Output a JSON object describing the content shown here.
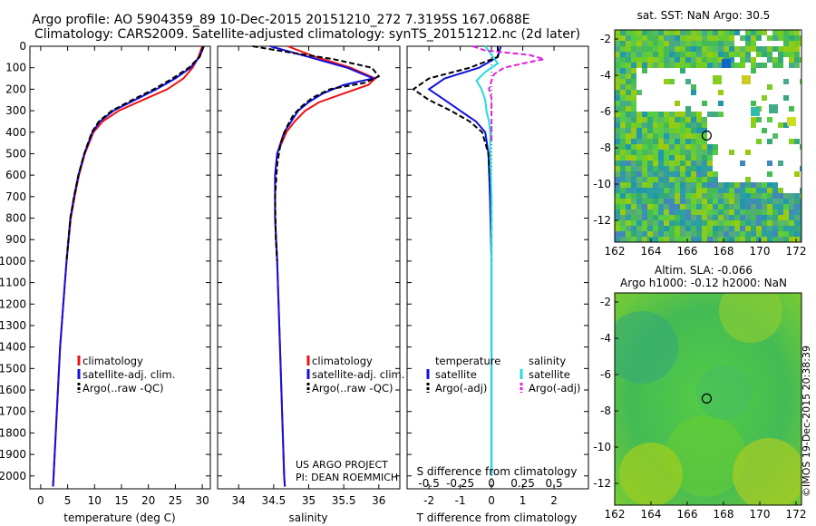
{
  "header": {
    "title_line1": "Argo profile: AO 5904359_89 10-Dec-2015 20151210_272 7.3195S 167.0688E",
    "title_line2": "Climatology: CARS2009. Satellite-adjusted climatology: synTS_20151212.nc (2d later)"
  },
  "colors": {
    "climatology": "#ee1111",
    "satellite": "#1111dd",
    "argo": "#000000",
    "sal_satellite": "#22dddd",
    "sal_argo": "#dd22dd",
    "ocean_green": "#55cc44",
    "land_white": "#ffffff"
  },
  "legend": {
    "climatology": "climatology",
    "satellite_adj": "satellite-adj. clim.",
    "argo_raw": "Argo(..raw -QC)",
    "temperature_head": "temperature",
    "salinity_head": "salinity",
    "satellite": "satellite",
    "argo_adj": "Argo(-adj)"
  },
  "credits": {
    "line1": "US ARGO PROJECT",
    "line2": "PI: DEAN ROEMMICH",
    "imos": "©IMOS 19-Dec-2015 20:38:39"
  },
  "maps": {
    "sst_title": "sat. SST: NaN Argo: 30.5",
    "sla_title1": "Altim. SLA: -0.066",
    "sla_title2": "Argo h1000: -0.12 h2000: NaN",
    "lon_ticks": [
      "162",
      "164",
      "166",
      "168",
      "170",
      "172"
    ],
    "lat_ticks": [
      "-2",
      "-4",
      "-6",
      "-8",
      "-10",
      "-12"
    ],
    "lon_range": [
      162,
      172.3
    ],
    "lat_range": [
      -13.2,
      -1.5
    ],
    "argo_position": {
      "lon": 167.07,
      "lat": -7.32
    }
  },
  "chart_data": [
    {
      "type": "line",
      "name": "temperature-profile",
      "xlabel": "temperature (deg C)",
      "ylabel": "",
      "xlim": [
        -2,
        31.5
      ],
      "ylim": [
        2060,
        0
      ],
      "x_ticks": [
        0,
        5,
        10,
        15,
        20,
        25,
        30
      ],
      "y_ticks": [
        0,
        100,
        200,
        300,
        400,
        500,
        600,
        700,
        800,
        900,
        1000,
        1100,
        1200,
        1300,
        1400,
        1500,
        1600,
        1700,
        1800,
        1900,
        2000
      ],
      "series": [
        {
          "name": "climatology",
          "depth": [
            0,
            50,
            100,
            150,
            200,
            250,
            300,
            350,
            400,
            500,
            600,
            700,
            800,
            1000,
            1200,
            1400,
            1600,
            1800,
            2000,
            2050
          ],
          "values": [
            30.0,
            29.3,
            28.2,
            26.5,
            23.5,
            19.0,
            14.5,
            11.5,
            9.8,
            8.2,
            7.1,
            6.3,
            5.6,
            4.8,
            4.2,
            3.6,
            3.2,
            2.8,
            2.4,
            2.3
          ]
        },
        {
          "name": "satellite-adj. clim.",
          "depth": [
            0,
            50,
            100,
            150,
            200,
            250,
            300,
            350,
            400,
            500,
            600,
            700,
            800,
            1000,
            1200,
            1400,
            1600,
            1800,
            2000,
            2050
          ],
          "values": [
            30.3,
            29.5,
            27.8,
            25.0,
            21.5,
            17.5,
            13.5,
            11.0,
            9.6,
            8.1,
            7.0,
            6.2,
            5.5,
            4.8,
            4.2,
            3.6,
            3.2,
            2.8,
            2.4,
            2.3
          ]
        },
        {
          "name": "Argo(..raw -QC)",
          "depth": [
            0,
            50,
            100,
            150,
            200,
            250,
            300,
            350,
            400,
            500,
            600,
            700,
            800,
            1000
          ],
          "values": [
            30.2,
            29.5,
            27.5,
            24.5,
            21.0,
            17.0,
            13.2,
            10.8,
            9.5,
            8.1,
            7.0,
            6.2,
            5.5,
            4.8
          ]
        }
      ]
    },
    {
      "type": "line",
      "name": "salinity-profile",
      "xlabel": "salinity",
      "xlim": [
        33.7,
        36.3
      ],
      "ylim": [
        2060,
        0
      ],
      "x_ticks": [
        34,
        34.5,
        35,
        35.5,
        36
      ],
      "series": [
        {
          "name": "climatology",
          "depth": [
            0,
            50,
            100,
            150,
            180,
            220,
            260,
            300,
            350,
            400,
            500,
            600,
            800,
            1000,
            1500,
            2000,
            2050
          ],
          "values": [
            34.7,
            35.1,
            35.6,
            35.95,
            35.85,
            35.5,
            35.15,
            34.95,
            34.8,
            34.68,
            34.55,
            34.52,
            34.52,
            34.55,
            34.6,
            34.65,
            34.66
          ]
        },
        {
          "name": "satellite-adj. clim.",
          "depth": [
            0,
            50,
            100,
            150,
            180,
            220,
            260,
            300,
            350,
            400,
            500,
            600,
            800,
            1000,
            1500,
            2000,
            2050
          ],
          "values": [
            34.45,
            35.0,
            35.55,
            35.92,
            35.5,
            35.2,
            35.0,
            34.85,
            34.75,
            34.65,
            34.55,
            34.52,
            34.52,
            34.55,
            34.6,
            34.65,
            34.66
          ]
        },
        {
          "name": "Argo(..raw -QC)",
          "depth": [
            0,
            30,
            60,
            100,
            140,
            170,
            200,
            240,
            280,
            320,
            380,
            450,
            550,
            700,
            900,
            1000
          ],
          "values": [
            34.2,
            34.75,
            35.35,
            35.9,
            36.0,
            35.8,
            35.3,
            35.05,
            34.9,
            34.78,
            34.68,
            34.6,
            34.55,
            34.52,
            34.53,
            34.55
          ]
        }
      ]
    },
    {
      "type": "line",
      "name": "difference-profile",
      "xlabel": "T difference from climatology",
      "xlabel_top": "S difference from climatology",
      "xlim": [
        -2.7,
        3.1
      ],
      "ylim": [
        2060,
        0
      ],
      "x_ticks": [
        -2,
        -1,
        0,
        1,
        2
      ],
      "x_ticks_top": [
        "-0.5",
        "-0.25",
        "0",
        "0.25",
        "0.5"
      ],
      "series": [
        {
          "name": "temperature satellite",
          "depth": [
            0,
            50,
            100,
            150,
            200,
            250,
            300,
            350,
            400,
            500,
            700,
            1000,
            1500,
            2000
          ],
          "values": [
            0.3,
            0.2,
            -0.4,
            -1.5,
            -2.0,
            -1.5,
            -1.0,
            -0.5,
            -0.2,
            -0.1,
            -0.05,
            0.0,
            0.0,
            0.0
          ]
        },
        {
          "name": "temperature Argo(-adj)",
          "depth": [
            0,
            50,
            100,
            150,
            200,
            250,
            300,
            350,
            400,
            500,
            700,
            1000
          ],
          "values": [
            0.2,
            0.2,
            -0.7,
            -2.0,
            -2.5,
            -2.0,
            -1.3,
            -0.7,
            -0.3,
            -0.1,
            0.0,
            0.0
          ]
        },
        {
          "name": "salinity satellite",
          "depth": [
            0,
            40,
            80,
            120,
            160,
            200,
            250,
            300,
            350,
            400,
            500,
            700,
            1000,
            1500,
            2000
          ],
          "values": [
            -0.05,
            0.0,
            0.05,
            -0.05,
            -0.12,
            -0.08,
            -0.05,
            -0.04,
            -0.02,
            -0.01,
            -0.01,
            0.0,
            0.0,
            0.0,
            0.0
          ]
        },
        {
          "name": "salinity Argo(-adj)",
          "depth": [
            0,
            20,
            40,
            60,
            80,
            100,
            130,
            160,
            200,
            240,
            280,
            320,
            380,
            450
          ],
          "values": [
            -0.15,
            -0.05,
            0.3,
            0.42,
            0.25,
            0.1,
            0.02,
            0.0,
            -0.02,
            0.0,
            0.0,
            0.0,
            0.0,
            0.0
          ]
        }
      ]
    }
  ]
}
